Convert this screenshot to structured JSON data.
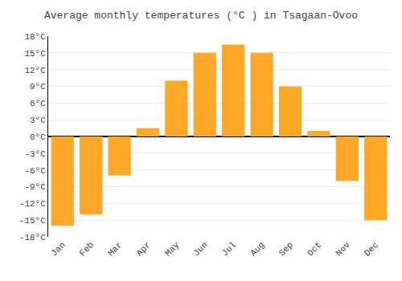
{
  "chart_data": {
    "type": "bar",
    "title": "Average monthly temperatures (°C ) in Tsagaan-Ovoo",
    "categories": [
      "Jan",
      "Feb",
      "Mar",
      "Apr",
      "May",
      "Jun",
      "Jul",
      "Aug",
      "Sep",
      "Oct",
      "Nov",
      "Dec"
    ],
    "values": [
      -16,
      -14,
      -7,
      1.5,
      10,
      15,
      16.5,
      15,
      9,
      1,
      -8,
      -15
    ],
    "color": "#FFA726",
    "ylim": [
      -18,
      18
    ],
    "yticks": [
      {
        "value": -18,
        "label": "-18°C"
      },
      {
        "value": -15,
        "label": "-15°C"
      },
      {
        "value": -12,
        "label": "-12°C"
      },
      {
        "value": -9,
        "label": "-9°C"
      },
      {
        "value": -6,
        "label": "-6°C"
      },
      {
        "value": -3,
        "label": "-3°C"
      },
      {
        "value": 0,
        "label": "0°C"
      },
      {
        "value": 3,
        "label": "3°C"
      },
      {
        "value": 6,
        "label": "6°C"
      },
      {
        "value": 9,
        "label": "9°C"
      },
      {
        "value": 12,
        "label": "12°C"
      },
      {
        "value": 15,
        "label": "15°C"
      },
      {
        "value": 18,
        "label": "18°C"
      }
    ],
    "grid": true
  }
}
